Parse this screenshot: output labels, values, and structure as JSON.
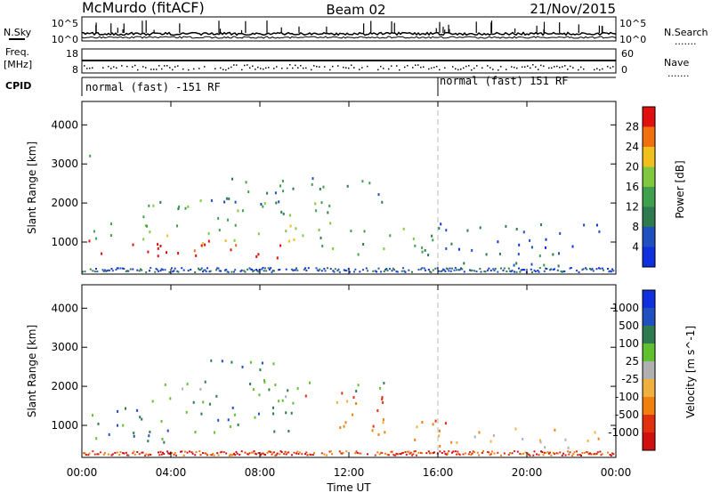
{
  "header": {
    "radar": "McMurdo (fitACF)",
    "beam": "Beam 02",
    "date": "21/Nov/2015"
  },
  "left_labels": {
    "nsky": "N.Sky",
    "freq": "Freq.",
    "mhz": "[MHz]",
    "cpid": "CPID",
    "freq_ticks": [
      "18",
      "8"
    ],
    "nsky_ticks": [
      "10^5",
      "10^0"
    ]
  },
  "right_labels": {
    "nsearch": "N.Search",
    "nave": "Nave",
    "nsearch_ticks": [
      "10^5",
      "10^0"
    ],
    "nave_ticks": [
      "60",
      "0"
    ],
    "dots": "......."
  },
  "cpid_bar": {
    "mode_1": "normal (fast) -151 RF",
    "mode_2": "normal (fast) 151 RF"
  },
  "colors": {
    "power": [
      "#1030e0",
      "#2050c0",
      "#2f7a4f",
      "#3fa050",
      "#80c840",
      "#f0c020",
      "#f07010",
      "#e01010"
    ],
    "velocity": [
      "#d01010",
      "#e03010",
      "#f08010",
      "#f0b040",
      "#b0b0b0",
      "#60c030",
      "#2f7a4f",
      "#2050c0",
      "#1030e0"
    ]
  },
  "chart_data": [
    {
      "type": "heatmap",
      "name": "power",
      "ylabel": "Slant Range [km]",
      "xlabel": "",
      "x_ticks": [
        "00:00",
        "04:00",
        "08:00",
        "12:00",
        "16:00",
        "20:00",
        "00:00"
      ],
      "y_ticks": [
        "1000",
        "2000",
        "3000",
        "4000"
      ],
      "xlim_hours": [
        0,
        24
      ],
      "ylim_km": [
        180,
        4600
      ],
      "colorbar": {
        "label": "Power [dB]",
        "ticks": [
          "4",
          "8",
          "12",
          "16",
          "20",
          "24",
          "28"
        ],
        "range": [
          0,
          32
        ]
      },
      "regions": [
        {
          "t0": 0.3,
          "t1": 9.6,
          "r0": 600,
          "r1": 1100,
          "level": 7
        },
        {
          "t0": 0.5,
          "t1": 10.5,
          "r0": 1000,
          "r1": 1500,
          "level": 4
        },
        {
          "t0": 2.5,
          "t1": 11.5,
          "r0": 1500,
          "r1": 2100,
          "level": 3
        },
        {
          "t0": 5.5,
          "t1": 13.5,
          "r0": 2000,
          "r1": 2700,
          "level": 2
        },
        {
          "t0": 10.0,
          "t1": 16.0,
          "r0": 700,
          "r1": 1400,
          "level": 3
        },
        {
          "t0": 15.5,
          "t1": 22.0,
          "r0": 400,
          "r1": 800,
          "level": 2
        },
        {
          "t0": 16.0,
          "t1": 23.5,
          "r0": 800,
          "r1": 1500,
          "level": 1
        },
        {
          "t0": 0.2,
          "t1": 0.6,
          "r0": 3100,
          "r1": 3400,
          "level": 3
        }
      ]
    },
    {
      "type": "heatmap",
      "name": "velocity",
      "ylabel": "Slant Range [km]",
      "xlabel": "Time UT",
      "x_ticks": [
        "00:00",
        "04:00",
        "08:00",
        "12:00",
        "16:00",
        "20:00",
        "00:00"
      ],
      "y_ticks": [
        "1000",
        "2000",
        "3000",
        "4000"
      ],
      "xlim_hours": [
        0,
        24
      ],
      "ylim_km": [
        180,
        4600
      ],
      "colorbar": {
        "label": "Velocity [m s^-1]",
        "ticks": [
          "1000",
          "500",
          "100",
          "25",
          "-25",
          "-100",
          "-500",
          "-1000"
        ]
      },
      "regions": [
        {
          "t0": 0.3,
          "t1": 9.5,
          "r0": 600,
          "r1": 1500,
          "level": 6
        },
        {
          "t0": 2.5,
          "t1": 10.5,
          "r0": 1500,
          "r1": 2200,
          "level": 5
        },
        {
          "t0": 5.5,
          "t1": 9.0,
          "r0": 2200,
          "r1": 2700,
          "level": 6
        },
        {
          "t0": 10.0,
          "t1": 13.5,
          "r0": 900,
          "r1": 1900,
          "level": 2
        },
        {
          "t0": 13.0,
          "t1": 16.5,
          "r0": 600,
          "r1": 1200,
          "level": 2
        },
        {
          "t0": 16.0,
          "t1": 23.5,
          "r0": 400,
          "r1": 1000,
          "level": 3
        },
        {
          "t0": 11.0,
          "t1": 14.0,
          "r0": 1900,
          "r1": 2200,
          "level": 5
        }
      ]
    }
  ]
}
